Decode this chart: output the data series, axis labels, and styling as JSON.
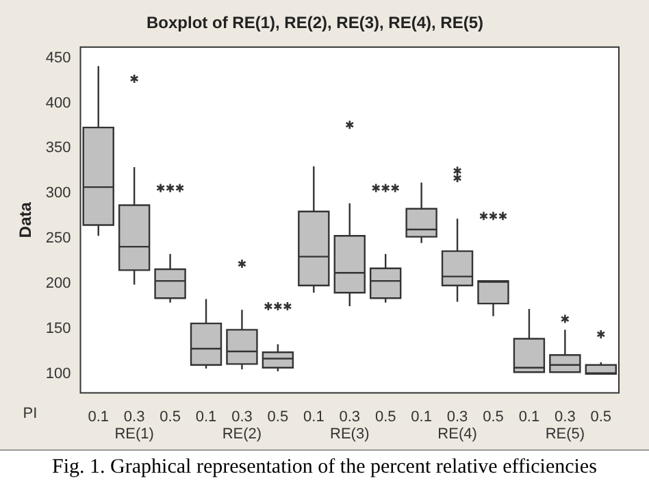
{
  "chart_data": {
    "type": "box",
    "title": "Boxplot of RE(1), RE(2), RE(3), RE(4), RE(5)",
    "ylabel": "Data",
    "categories": [
      "0.1",
      "0.3",
      "0.5",
      "0.1",
      "0.3",
      "0.5",
      "0.1",
      "0.3",
      "0.5",
      "0.1",
      "0.3",
      "0.5",
      "0.1",
      "0.3",
      "0.5"
    ],
    "color": "#c0c0c0",
    "boxes": [
      {
        "low": 253,
        "q1": 265,
        "median": 307,
        "q3": 373,
        "high": 441
      },
      {
        "low": 199,
        "q1": 215,
        "median": 241,
        "q3": 287,
        "high": 329,
        "outliers": [
          427
        ]
      },
      {
        "low": 179,
        "q1": 184,
        "median": 203,
        "q3": 216,
        "high": 233,
        "outliers": [
          306,
          306,
          306
        ]
      },
      {
        "low": 106,
        "q1": 110,
        "median": 128,
        "q3": 156,
        "high": 183
      },
      {
        "low": 105,
        "q1": 111,
        "median": 125,
        "q3": 149,
        "high": 171,
        "outliers": [
          222
        ]
      },
      {
        "low": 103,
        "q1": 107,
        "median": 117,
        "q3": 124,
        "high": 133,
        "outliers": [
          175,
          175,
          175
        ]
      },
      {
        "low": 190,
        "q1": 198,
        "median": 230,
        "q3": 280,
        "high": 330
      },
      {
        "low": 175,
        "q1": 190,
        "median": 212,
        "q3": 253,
        "high": 289,
        "outliers": [
          376
        ]
      },
      {
        "low": 179,
        "q1": 184,
        "median": 203,
        "q3": 217,
        "high": 233,
        "outliers": [
          306,
          306,
          306
        ]
      },
      {
        "low": 245,
        "q1": 252,
        "median": 260,
        "q3": 283,
        "high": 312
      },
      {
        "low": 180,
        "q1": 198,
        "median": 208,
        "q3": 236,
        "high": 272,
        "outliers": [
          325,
          317
        ]
      },
      {
        "low": 164,
        "q1": 178,
        "median": 202,
        "q3": 203,
        "high": 203,
        "outliers": [
          275,
          275,
          275
        ]
      },
      {
        "low": 102,
        "q1": 102,
        "median": 107,
        "q3": 139,
        "high": 172
      },
      {
        "low": 102,
        "q1": 102,
        "median": 110,
        "q3": 121,
        "high": 149,
        "outliers": [
          161
        ]
      },
      {
        "low": 100,
        "q1": 100,
        "median": 101,
        "q3": 110,
        "high": 113,
        "outliers": [
          144
        ]
      }
    ],
    "ylim": [
      79,
      462
    ],
    "yticks": [
      100,
      150,
      200,
      250,
      300,
      350,
      400,
      450
    ],
    "annotations": [
      "PI",
      "RE(1)",
      "RE(2)",
      "RE(3)",
      "RE(4)",
      "RE(5)",
      "Fig. 1. Graphical representation of the percent relative efficiencies"
    ]
  }
}
